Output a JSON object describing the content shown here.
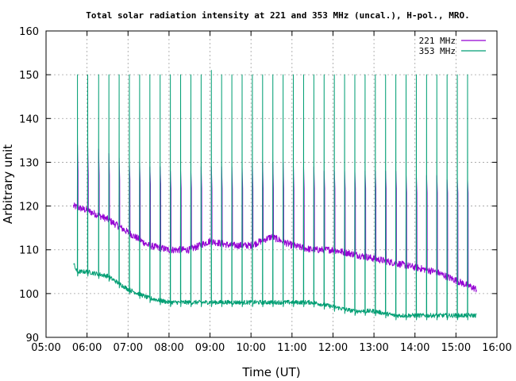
{
  "chart_data": {
    "type": "line",
    "title": "Total solar radiation intensity at 221 and 353 MHz (uncal.), H-pol., MRO.",
    "xlabel": "Time (UT)",
    "ylabel": "Arbitrary unit",
    "xlim": [
      "05:00",
      "16:00"
    ],
    "ylim": [
      90,
      160
    ],
    "x_ticks": [
      "05:00",
      "06:00",
      "07:00",
      "08:00",
      "09:00",
      "10:00",
      "11:00",
      "12:00",
      "13:00",
      "14:00",
      "15:00",
      "16:00"
    ],
    "y_ticks": [
      90,
      100,
      110,
      120,
      130,
      140,
      150,
      160
    ],
    "grid": true,
    "legend_position": "top-right",
    "colors": {
      "221 MHz": "#9400d3",
      "353 MHz": "#009e73"
    },
    "series": [
      {
        "name": "221 MHz",
        "x": [
          "05:40",
          "06:00",
          "06:30",
          "07:00",
          "07:30",
          "08:00",
          "08:30",
          "09:00",
          "09:30",
          "10:00",
          "10:30",
          "11:00",
          "11:30",
          "12:00",
          "12:30",
          "13:00",
          "13:30",
          "14:00",
          "14:30",
          "15:00",
          "15:30"
        ],
        "values": [
          120,
          119,
          117,
          114,
          111,
          110,
          110,
          112,
          111,
          111,
          113,
          111,
          110,
          110,
          109,
          108,
          107,
          106,
          105,
          103,
          101
        ]
      },
      {
        "name": "353 MHz",
        "x": [
          "05:40",
          "05:45",
          "06:00",
          "06:30",
          "07:00",
          "07:30",
          "08:00",
          "08:30",
          "09:00",
          "09:30",
          "10:00",
          "10:30",
          "11:00",
          "11:30",
          "12:00",
          "12:30",
          "13:00",
          "13:30",
          "14:00",
          "14:30",
          "15:00",
          "15:30"
        ],
        "values": [
          107,
          105,
          105,
          104,
          101,
          99,
          98,
          98,
          98,
          98,
          98,
          98,
          98,
          98,
          97,
          96,
          96,
          95,
          95,
          95,
          95,
          95
        ]
      }
    ],
    "calibration_spikes": {
      "times": [
        "05:46",
        "06:01",
        "06:17",
        "06:32",
        "06:47",
        "07:02",
        "07:17",
        "07:32",
        "07:47",
        "08:02",
        "08:17",
        "08:32",
        "08:47",
        "09:02",
        "09:17",
        "09:32",
        "09:47",
        "10:02",
        "10:17",
        "10:32",
        "10:47",
        "11:02",
        "11:17",
        "11:32",
        "11:47",
        "12:02",
        "12:17",
        "12:32",
        "12:47",
        "13:02",
        "13:17",
        "13:32",
        "13:47",
        "14:02",
        "14:17",
        "14:32",
        "14:47",
        "15:02",
        "15:17",
        "15:32"
      ],
      "peak_353": [
        150,
        150,
        150,
        150,
        150,
        150,
        150,
        150,
        150,
        150,
        150,
        150,
        150,
        151,
        150,
        150,
        150,
        150,
        150,
        150,
        150,
        150,
        150,
        150,
        150,
        150,
        150,
        150,
        150,
        150,
        150,
        150,
        150,
        150,
        150,
        150,
        150,
        150,
        150,
        150
      ],
      "peak_221": [
        134,
        134,
        133,
        132,
        131,
        130,
        130,
        129,
        129,
        128,
        128,
        128,
        129,
        129,
        129,
        129,
        129,
        130,
        130,
        130,
        130,
        129,
        129,
        129,
        128,
        128,
        128,
        128,
        128,
        128,
        128,
        128,
        127,
        127,
        127,
        127,
        126,
        126,
        126,
        125
      ],
      "plateau_221": [
        128,
        127,
        127,
        127,
        126,
        126,
        125,
        125,
        125,
        124,
        124,
        124,
        124,
        124,
        124,
        124,
        124,
        124,
        124,
        124,
        124,
        124,
        124,
        124,
        124,
        124,
        124,
        124,
        124,
        124,
        124,
        124,
        123,
        123,
        123,
        123,
        123,
        123,
        123,
        122
      ]
    }
  }
}
